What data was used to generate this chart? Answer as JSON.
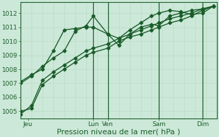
{
  "title": "",
  "xlabel": "Pression niveau de la mer( hPa )",
  "ylim": [
    1004.5,
    1012.8
  ],
  "xlim": [
    0,
    108
  ],
  "yticks": [
    1005,
    1006,
    1007,
    1008,
    1009,
    1010,
    1011,
    1012
  ],
  "xtick_positions": [
    4,
    40,
    48,
    76,
    100
  ],
  "xtick_labels": [
    "Jeu",
    "Lun",
    "Ven",
    "Sam",
    "Dim"
  ],
  "bg_color": "#cce8d8",
  "grid_color": "#99ccb0",
  "line_color": "#1a5c2a",
  "minor_grid_color": "#b8ddc8",
  "lines": [
    [
      0,
      1005.0,
      6,
      1005.2,
      12,
      1006.9,
      18,
      1007.5,
      24,
      1008.0,
      30,
      1008.5,
      36,
      1009.0,
      40,
      1009.2,
      48,
      1009.5,
      54,
      1010.0,
      60,
      1010.3,
      66,
      1010.5,
      72,
      1010.8,
      76,
      1011.0,
      82,
      1011.3,
      88,
      1011.5,
      94,
      1011.8,
      100,
      1012.2,
      106,
      1012.5
    ],
    [
      0,
      1004.8,
      6,
      1005.4,
      12,
      1007.2,
      18,
      1007.8,
      24,
      1008.3,
      30,
      1008.8,
      36,
      1009.3,
      40,
      1009.5,
      48,
      1009.8,
      54,
      1010.2,
      60,
      1010.5,
      66,
      1010.8,
      72,
      1011.1,
      76,
      1011.3,
      82,
      1011.6,
      88,
      1011.8,
      94,
      1012.0,
      100,
      1012.3,
      106,
      1012.5
    ],
    [
      0,
      1007.0,
      6,
      1007.5,
      12,
      1008.2,
      18,
      1008.8,
      24,
      1009.3,
      30,
      1010.7,
      36,
      1011.1,
      40,
      1011.8,
      48,
      1010.5,
      54,
      1009.7,
      60,
      1010.5,
      66,
      1011.0,
      72,
      1011.2,
      76,
      1011.1,
      82,
      1011.8,
      88,
      1012.0,
      94,
      1012.2,
      100,
      1012.3,
      106,
      1012.5
    ],
    [
      0,
      1007.1,
      6,
      1007.6,
      12,
      1008.0,
      18,
      1009.3,
      24,
      1010.8,
      30,
      1010.9,
      36,
      1011.0,
      40,
      1011.0,
      48,
      1010.5,
      54,
      1010.2,
      60,
      1010.8,
      66,
      1011.3,
      72,
      1011.8,
      76,
      1012.0,
      82,
      1012.2,
      88,
      1012.1,
      94,
      1011.9,
      100,
      1012.0,
      106,
      1012.5
    ]
  ],
  "vline_positions": [
    40,
    48,
    76,
    100
  ],
  "marker": "D",
  "markersize": 2.5,
  "linewidth": 1.0,
  "xlabel_fontsize": 8,
  "tick_fontsize": 6.5,
  "fig_bg": "#cce8d8"
}
